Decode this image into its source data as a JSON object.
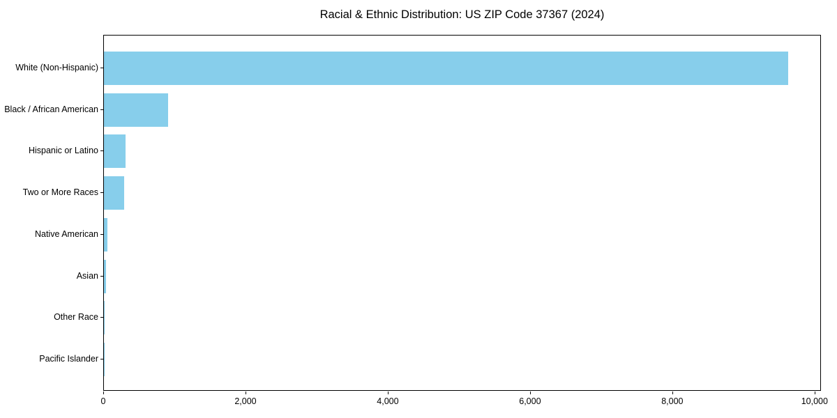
{
  "figure": {
    "background": "#ffffff"
  },
  "chart_data": {
    "type": "bar",
    "orientation": "horizontal",
    "title": "Racial & Ethnic Distribution: US ZIP Code 37367 (2024)",
    "categories": [
      "White (Non-Hispanic)",
      "Black / African American",
      "Hispanic or Latino",
      "Two or More Races",
      "Native American",
      "Asian",
      "Other Race",
      "Pacific Islander"
    ],
    "values": [
      9620,
      900,
      305,
      280,
      52,
      30,
      8,
      3
    ],
    "xlabel": "",
    "ylabel": "",
    "bar_color": "#87CEEB",
    "axis_color": "#000000",
    "text_color": "#000000",
    "xlim": [
      0,
      10090
    ],
    "x_ticks": [
      0,
      2000,
      4000,
      6000,
      8000,
      10000
    ],
    "x_tick_labels": [
      "0",
      "2,000",
      "4,000",
      "6,000",
      "8,000",
      "10,000"
    ],
    "grid": false,
    "legend": "none"
  }
}
